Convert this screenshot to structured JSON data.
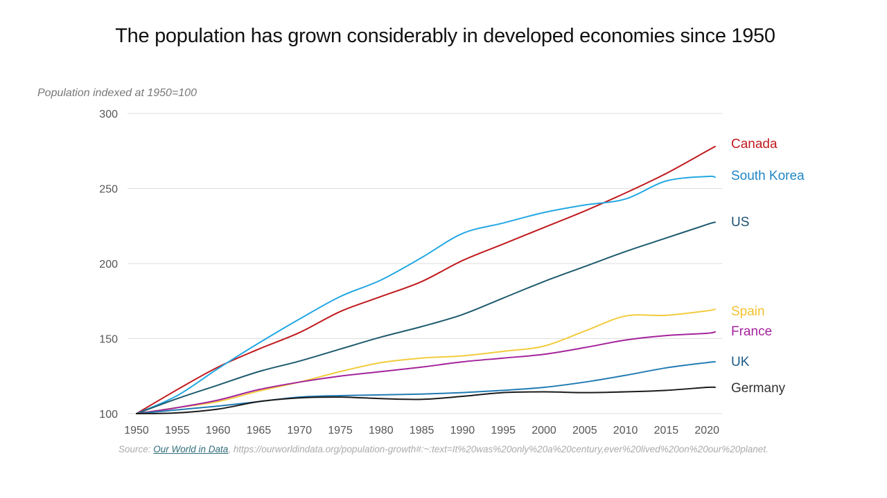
{
  "chart_data": {
    "type": "line",
    "title": "The population has grown considerably in developed economies since 1950",
    "ylabel": "Population indexed at 1950=100",
    "xlabel": "",
    "xlim": [
      1950,
      2021
    ],
    "ylim": [
      100,
      300
    ],
    "x_ticks": [
      1950,
      1955,
      1960,
      1965,
      1970,
      1975,
      1980,
      1985,
      1990,
      1995,
      2000,
      2005,
      2010,
      2015,
      2020
    ],
    "y_ticks": [
      100,
      150,
      200,
      250,
      300
    ],
    "grid": "horizontal",
    "legend": "direct labels at line ends (right)",
    "x": [
      1950,
      1955,
      1960,
      1965,
      1970,
      1975,
      1980,
      1985,
      1990,
      1995,
      2000,
      2005,
      2010,
      2015,
      2020,
      2021
    ],
    "series": [
      {
        "name": "Canada",
        "color": "#c0191d",
        "values": [
          100,
          116,
          131,
          143,
          154,
          168,
          178,
          188,
          202,
          213,
          224,
          235,
          247,
          260,
          275,
          278
        ]
      },
      {
        "name": "South Korea",
        "color": "#22a7e3",
        "values": [
          100,
          112,
          130,
          147,
          163,
          178,
          189,
          204,
          220,
          227,
          234,
          239,
          243,
          255,
          258,
          257.5
        ]
      },
      {
        "name": "US",
        "color": "#1d5a6e",
        "values": [
          100,
          110,
          119,
          128,
          135,
          143,
          151,
          158,
          166,
          177,
          188,
          198,
          208,
          217,
          226,
          227.5
        ]
      },
      {
        "name": "Spain",
        "color": "#f2cb3d",
        "values": [
          100,
          104,
          108,
          115,
          121,
          128,
          134,
          137,
          138.5,
          141.5,
          145,
          155,
          165,
          165.5,
          168.5,
          169.5
        ]
      },
      {
        "name": "France",
        "color": "#a4229b",
        "values": [
          100,
          104,
          109,
          116,
          121,
          125,
          128,
          131,
          134.5,
          137,
          139.5,
          144,
          149,
          152,
          153.5,
          154.5
        ]
      },
      {
        "name": "UK",
        "color": "#1f7ab3",
        "values": [
          100,
          102.5,
          105,
          108,
          111,
          112,
          112.5,
          113,
          114,
          115.5,
          117.5,
          121,
          125.5,
          130.5,
          134,
          134.5
        ]
      },
      {
        "name": "Germany",
        "color": "#1a1a1a",
        "values": [
          100,
          100.5,
          103,
          108,
          110.5,
          111,
          110,
          109.5,
          111.5,
          114,
          114.5,
          114,
          114.5,
          115.5,
          117.5,
          117.5
        ]
      }
    ],
    "label_colors": {
      "Canada": "#c0191d",
      "South Korea": "#1f86c6",
      "US": "#1d4f72",
      "Spain": "#f2c12e",
      "France": "#a4229b",
      "UK": "#1d5a86",
      "Germany": "#333333"
    }
  },
  "source": {
    "prefix": "Source: ",
    "link_text": "Our World in Data",
    "rest": ", https://ourworldindata.org/population-growth#:~:text=It%20was%20only%20a%20century,ever%20lived%20on%20our%20planet."
  }
}
